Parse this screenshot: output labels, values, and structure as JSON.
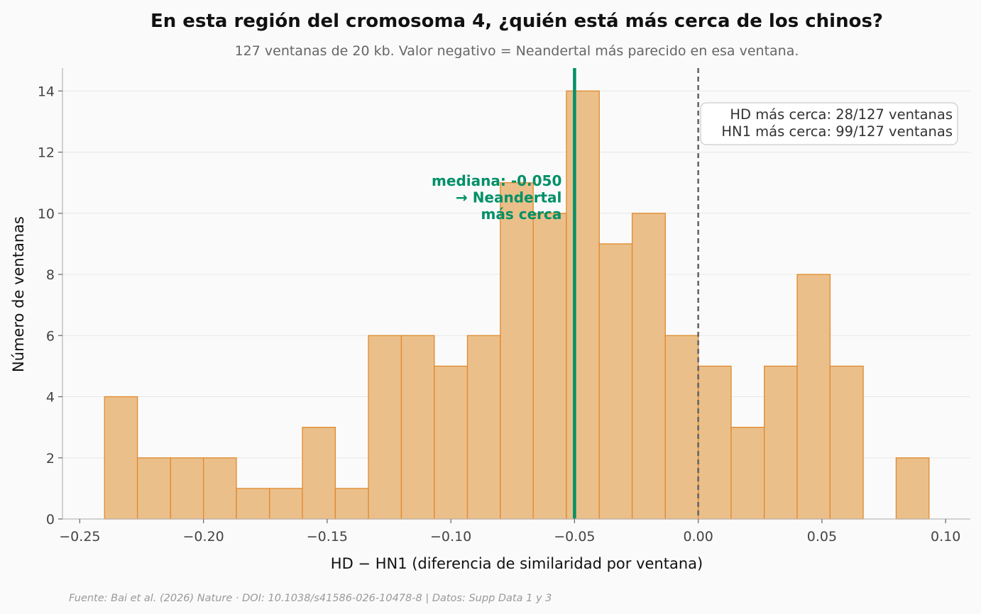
{
  "chart_data": {
    "type": "bar",
    "title": "En esta región del cromosoma 4, ¿quién está más cerca de los chinos?",
    "subtitle": "127 ventanas de 20 kb. Valor negativo = Neandertal más parecido en esa ventana.",
    "xlabel": "HD − HN1 (diferencia de similaridad por ventana)",
    "ylabel": "Número de ventanas",
    "xlim": [
      -0.257,
      0.11
    ],
    "ylim": [
      0,
      14.75
    ],
    "x_ticks": [
      {
        "value": -0.25,
        "label": "−0.25"
      },
      {
        "value": -0.2,
        "label": "−0.20"
      },
      {
        "value": -0.15,
        "label": "−0.15"
      },
      {
        "value": -0.1,
        "label": "−0.10"
      },
      {
        "value": -0.05,
        "label": "−0.05"
      },
      {
        "value": 0.0,
        "label": "0.00"
      },
      {
        "value": 0.05,
        "label": "0.05"
      },
      {
        "value": 0.1,
        "label": "0.10"
      }
    ],
    "y_ticks": [
      {
        "value": 0,
        "label": "0"
      },
      {
        "value": 2,
        "label": "2"
      },
      {
        "value": 4,
        "label": "4"
      },
      {
        "value": 6,
        "label": "6"
      },
      {
        "value": 8,
        "label": "8"
      },
      {
        "value": 10,
        "label": "10"
      },
      {
        "value": 12,
        "label": "12"
      },
      {
        "value": 14,
        "label": "14"
      }
    ],
    "bins": [
      {
        "x0": -0.24,
        "x1": -0.2267,
        "count": 4
      },
      {
        "x0": -0.2267,
        "x1": -0.2133,
        "count": 2
      },
      {
        "x0": -0.2133,
        "x1": -0.2,
        "count": 2
      },
      {
        "x0": -0.2,
        "x1": -0.1867,
        "count": 2
      },
      {
        "x0": -0.1867,
        "x1": -0.1733,
        "count": 1
      },
      {
        "x0": -0.1733,
        "x1": -0.16,
        "count": 1
      },
      {
        "x0": -0.16,
        "x1": -0.1467,
        "count": 3
      },
      {
        "x0": -0.1467,
        "x1": -0.1333,
        "count": 1
      },
      {
        "x0": -0.1333,
        "x1": -0.12,
        "count": 6
      },
      {
        "x0": -0.12,
        "x1": -0.1067,
        "count": 6
      },
      {
        "x0": -0.1067,
        "x1": -0.0933,
        "count": 5
      },
      {
        "x0": -0.0933,
        "x1": -0.08,
        "count": 6
      },
      {
        "x0": -0.08,
        "x1": -0.0667,
        "count": 11
      },
      {
        "x0": -0.0667,
        "x1": -0.0533,
        "count": 10
      },
      {
        "x0": -0.0533,
        "x1": -0.04,
        "count": 14
      },
      {
        "x0": -0.04,
        "x1": -0.0267,
        "count": 9
      },
      {
        "x0": -0.0267,
        "x1": -0.0133,
        "count": 10
      },
      {
        "x0": -0.0133,
        "x1": 0.0,
        "count": 6
      },
      {
        "x0": 0.0,
        "x1": 0.0133,
        "count": 5
      },
      {
        "x0": 0.0133,
        "x1": 0.0267,
        "count": 3
      },
      {
        "x0": 0.0267,
        "x1": 0.04,
        "count": 5
      },
      {
        "x0": 0.04,
        "x1": 0.0533,
        "count": 8
      },
      {
        "x0": 0.0533,
        "x1": 0.0667,
        "count": 5
      },
      {
        "x0": 0.0667,
        "x1": 0.08,
        "count": 0
      },
      {
        "x0": 0.08,
        "x1": 0.0933,
        "count": 2
      }
    ],
    "median": {
      "value": -0.05,
      "label_lines": [
        "mediana: -0.050",
        "→ Neandertal",
        "más cerca"
      ],
      "color": "#009067"
    },
    "reference_line": {
      "value": 0.0,
      "color": "#666666"
    },
    "stats_box": {
      "position": "top-right",
      "lines": [
        "HD más cerca: 28/127 ventanas",
        "HN1 más cerca: 99/127 ventanas"
      ]
    },
    "grid": "horizontal",
    "bar_fill": "#ebbf8a",
    "bar_edge": "#e08a2f",
    "source": "Fuente: Bai et al. (2026) Nature · DOI: 10.1038/s41586-026-10478-8 | Datos: Supp Data 1 y 3"
  }
}
